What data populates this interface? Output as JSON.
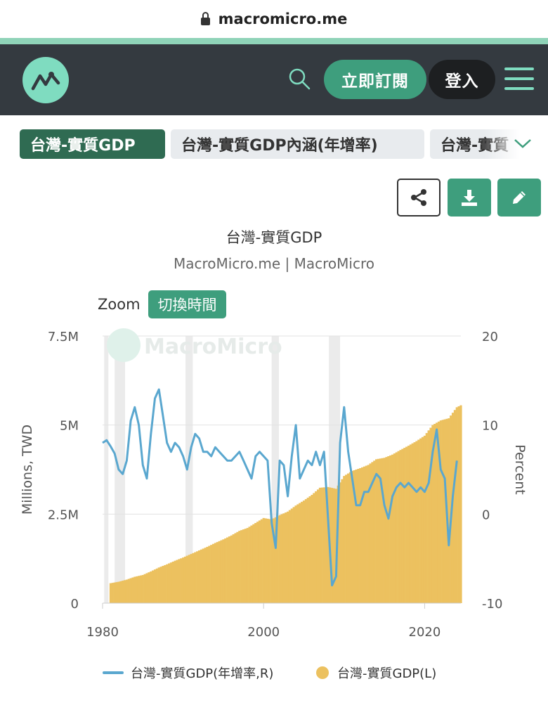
{
  "browser": {
    "url": "macromicro.me"
  },
  "header": {
    "logo_icon": "chart-line-icon",
    "search_icon": "search-icon",
    "subscribe_label": "立即訂閱",
    "login_label": "登入",
    "menu_icon": "hamburger-menu-icon"
  },
  "tabs": [
    {
      "label": "台灣-實質GDP",
      "active": true
    },
    {
      "label": "台灣-實質GDP內涵(年增率)",
      "active": false
    },
    {
      "label": "台灣-實質",
      "active": false
    }
  ],
  "tools": {
    "share_icon": "share-icon",
    "download_icon": "download-icon",
    "edit_icon": "pencil-icon"
  },
  "colors": {
    "brand": "#3e9e7d",
    "header_bg": "#343a40",
    "line": "#5aa7cf",
    "bar": "#ecc15f",
    "recession": "#ebebeb"
  },
  "chart": {
    "title": "台灣-實質GDP",
    "subtitle": "MacroMicro.me | MacroMicro",
    "zoom_label": "Zoom",
    "switch_label": "切換時間",
    "watermark": "MacroMicro"
  },
  "chart_data": {
    "type": "bar",
    "title": "台灣-實質GDP",
    "xlabel": "",
    "ylabel": "Millions, TWD",
    "y2label": "Percent",
    "xlim": [
      1980,
      2024.5
    ],
    "ylim": [
      0,
      7500000
    ],
    "y2lim": [
      -10,
      20
    ],
    "x_ticks": [
      {
        "v": 1980,
        "label": "1980"
      },
      {
        "v": 2000,
        "label": "2000"
      },
      {
        "v": 2020,
        "label": "2020"
      }
    ],
    "y_ticks": [
      {
        "v": 0,
        "label": "0"
      },
      {
        "v": 2500000,
        "label": "2.5M"
      },
      {
        "v": 5000000,
        "label": "5M"
      },
      {
        "v": 7500000,
        "label": "7.5M"
      }
    ],
    "y2_ticks": [
      {
        "v": -10,
        "label": "-10"
      },
      {
        "v": 0,
        "label": "0"
      },
      {
        "v": 10,
        "label": "10"
      },
      {
        "v": 20,
        "label": "20"
      }
    ],
    "grid": true,
    "legend_position": "bottom",
    "recessions": [
      [
        1980.2,
        1980.6
      ],
      [
        1981.5,
        1982.8
      ],
      [
        1990.3,
        1991.2
      ],
      [
        2001.0,
        2001.9
      ],
      [
        2008.1,
        2009.5
      ]
    ],
    "series": [
      {
        "name": "台灣-實質GDP(L)",
        "type": "bar",
        "axis": "left",
        "x": [
          1981,
          1982,
          1983,
          1984,
          1985,
          1986,
          1987,
          1988,
          1989,
          1990,
          1991,
          1992,
          1993,
          1994,
          1995,
          1996,
          1997,
          1998,
          1999,
          2000,
          2001,
          2002,
          2003,
          2004,
          2005,
          2006,
          2007,
          2008,
          2009,
          2010,
          2011,
          2012,
          2013,
          2014,
          2015,
          2016,
          2017,
          2018,
          2019,
          2020,
          2021,
          2022,
          2023,
          2024
        ],
        "values": [
          560000,
          600000,
          660000,
          740000,
          790000,
          890000,
          1000000,
          1090000,
          1190000,
          1280000,
          1380000,
          1480000,
          1580000,
          1690000,
          1790000,
          1900000,
          2030000,
          2110000,
          2250000,
          2390000,
          2350000,
          2470000,
          2570000,
          2740000,
          2880000,
          3040000,
          3240000,
          3260000,
          3210000,
          3570000,
          3710000,
          3790000,
          3880000,
          4040000,
          4080000,
          4170000,
          4300000,
          4420000,
          4550000,
          4700000,
          5000000,
          5130000,
          5190000,
          5500000
        ]
      },
      {
        "name": "台灣-實質GDP(年增率,R)",
        "type": "line",
        "axis": "right",
        "x": [
          1980.0,
          1980.5,
          1981.0,
          1981.5,
          1982.0,
          1982.5,
          1983.0,
          1983.5,
          1984.0,
          1984.5,
          1985.0,
          1985.5,
          1986.0,
          1986.5,
          1987.0,
          1987.5,
          1988.0,
          1988.5,
          1989.0,
          1989.5,
          1990.0,
          1990.5,
          1991.0,
          1991.5,
          1992.0,
          1992.5,
          1993.0,
          1993.5,
          1994.0,
          1994.5,
          1995.0,
          1995.5,
          1996.0,
          1996.5,
          1997.0,
          1997.5,
          1998.0,
          1998.5,
          1999.0,
          1999.5,
          2000.0,
          2000.5,
          2001.0,
          2001.5,
          2002.0,
          2002.5,
          2003.0,
          2003.5,
          2004.0,
          2004.5,
          2005.0,
          2005.5,
          2006.0,
          2006.5,
          2007.0,
          2007.5,
          2008.0,
          2008.5,
          2009.0,
          2009.5,
          2010.0,
          2010.5,
          2011.0,
          2011.5,
          2012.0,
          2012.5,
          2013.0,
          2013.5,
          2014.0,
          2014.5,
          2015.0,
          2015.5,
          2016.0,
          2016.5,
          2017.0,
          2017.5,
          2018.0,
          2018.5,
          2019.0,
          2019.5,
          2020.0,
          2020.5,
          2021.0,
          2021.5,
          2022.0,
          2022.5,
          2023.0,
          2023.5,
          2024.0
        ],
        "values": [
          8.0,
          8.3,
          7.6,
          6.8,
          5.0,
          4.5,
          6.0,
          10.5,
          12.0,
          10.0,
          5.5,
          4.0,
          9.0,
          13.0,
          14.0,
          11.0,
          8.0,
          7.0,
          8.0,
          7.5,
          6.5,
          5.0,
          7.5,
          9.0,
          8.5,
          7.0,
          7.0,
          6.5,
          7.5,
          7.0,
          6.5,
          6.0,
          6.0,
          6.5,
          7.0,
          6.0,
          5.0,
          4.0,
          6.5,
          7.0,
          6.5,
          6.0,
          -1.0,
          -3.8,
          6.0,
          5.5,
          2.0,
          6.5,
          10.0,
          4.0,
          5.0,
          6.0,
          5.5,
          7.0,
          5.5,
          7.0,
          -0.5,
          -8.0,
          -7.0,
          8.0,
          12.0,
          7.0,
          4.0,
          1.0,
          1.0,
          2.5,
          2.5,
          3.5,
          4.5,
          4.0,
          1.0,
          -0.5,
          2.0,
          3.0,
          3.5,
          3.0,
          3.5,
          3.0,
          2.5,
          3.0,
          2.5,
          3.5,
          7.0,
          9.5,
          5.0,
          4.0,
          -3.5,
          2.0,
          6.0
        ]
      }
    ]
  },
  "legend": [
    {
      "label": "台灣-實質GDP(年增率,R)",
      "marker": "line"
    },
    {
      "label": "台灣-實質GDP(L)",
      "marker": "dot"
    }
  ]
}
